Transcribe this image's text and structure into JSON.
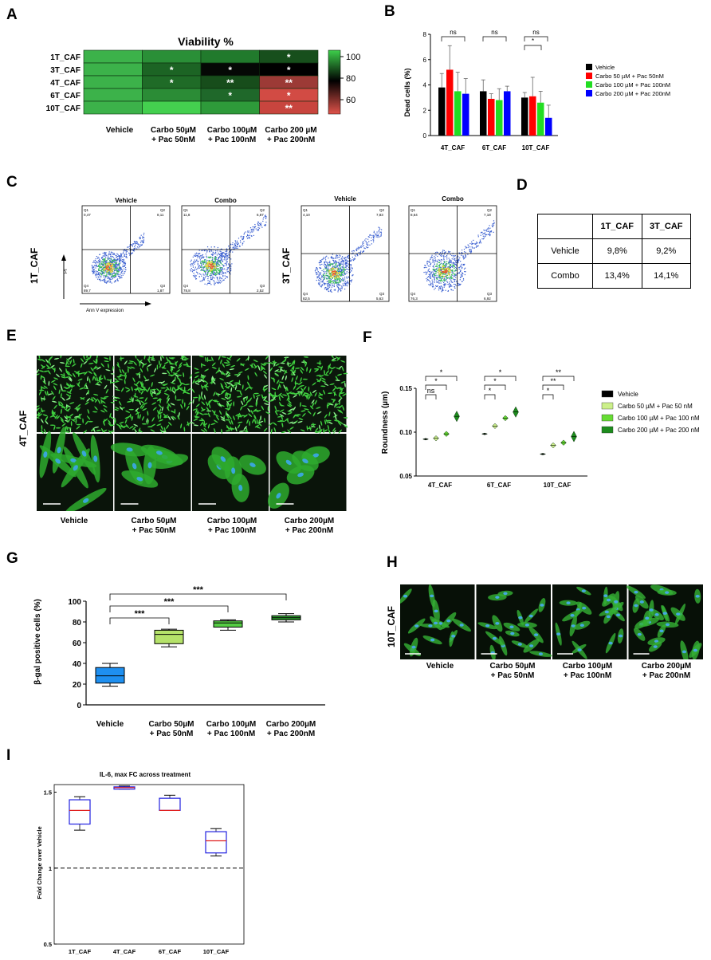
{
  "panels": {
    "a": "A",
    "b": "B",
    "c": "C",
    "d": "D",
    "e": "E",
    "f": "F",
    "g": "G",
    "h": "H",
    "i": "I"
  },
  "panel_a": {
    "title": "Viability %",
    "rows": [
      "1T_CAF",
      "3T_CAF",
      "4T_CAF",
      "6T_CAF",
      "10T_CAF"
    ],
    "columns": [
      "Vehicle",
      "Carbo 50µM + Pac 50nM",
      "Carbo 100µM + Pac 100nM",
      "Carbo 200 µM + Pac 200nM"
    ],
    "column_lines": [
      [
        "Vehicle",
        ""
      ],
      [
        "Carbo 50µM",
        "+ Pac 50nM"
      ],
      [
        "Carbo 100µM",
        "+ Pac 100nM"
      ],
      [
        "Carbo 200 µM",
        "+ Pac 200nM"
      ]
    ],
    "cells": [
      [
        {
          "color": "#3cb24a",
          "mark": ""
        },
        {
          "color": "#2a8f37",
          "mark": ""
        },
        {
          "color": "#217a2c",
          "mark": ""
        },
        {
          "color": "#174f1c",
          "mark": "*"
        }
      ],
      [
        {
          "color": "#3cb24a",
          "mark": ""
        },
        {
          "color": "#1c6424",
          "mark": "*"
        },
        {
          "color": "#050805",
          "mark": "*"
        },
        {
          "color": "#000000",
          "mark": "*"
        }
      ],
      [
        {
          "color": "#3cb24a",
          "mark": ""
        },
        {
          "color": "#1f6b27",
          "mark": "*"
        },
        {
          "color": "#174d1b",
          "mark": "**"
        },
        {
          "color": "#9c3a36",
          "mark": "**"
        }
      ],
      [
        {
          "color": "#3cb24a",
          "mark": ""
        },
        {
          "color": "#2b8c36",
          "mark": ""
        },
        {
          "color": "#1f682a",
          "mark": "*"
        },
        {
          "color": "#d24b44",
          "mark": "*"
        }
      ],
      [
        {
          "color": "#3cb24a",
          "mark": ""
        },
        {
          "color": "#44d04f",
          "mark": ""
        },
        {
          "color": "#2e9a3a",
          "mark": ""
        },
        {
          "color": "#c8453e",
          "mark": "**"
        }
      ]
    ],
    "colorbar_ticks": [
      "100",
      "80",
      "60"
    ]
  },
  "panel_b": {
    "ylabel": "Dead cells (%)",
    "yticks": [
      "0",
      "2",
      "4",
      "6",
      "8"
    ],
    "groups": [
      "4T_CAF",
      "6T_CAF",
      "10T_CAF"
    ],
    "legend": [
      "Vehicle",
      "Carbo 50 µM + Pac 50nM",
      "Carbo 100 µM + Pac 100nM",
      "Carbo 200 µM + Pac 200nM"
    ],
    "sig": [
      "ns",
      "ns",
      "*",
      "ns"
    ]
  },
  "panel_c": {
    "ylabel_rows": [
      "1T_CAF",
      "3T_CAF"
    ],
    "plot_titles": [
      "Vehicle",
      "Combo",
      "Vehicle",
      "Combo"
    ],
    "quadrants": [
      {
        "q1": "Q1",
        "q1v": "0,47",
        "q2": "Q2",
        "q2v": "8,11",
        "q3": "Q3",
        "q3v": "1,87",
        "q4": "Q4",
        "q4v": "89,7"
      },
      {
        "q1": "Q1",
        "q1v": "11,8",
        "q2": "Q2",
        "q2v": "6,87",
        "q3": "Q3",
        "q3v": "2,52",
        "q4": "Q4",
        "q4v": "78,8"
      },
      {
        "q1": "Q1",
        "q1v": "4,10",
        "q2": "Q2",
        "q2v": "7,83",
        "q3": "Q3",
        "q3v": "5,63",
        "q4": "Q4",
        "q4v": "82,5"
      },
      {
        "q1": "Q1",
        "q1v": "8,64",
        "q2": "Q2",
        "q2v": "7,18",
        "q3": "Q3",
        "q3v": "6,92",
        "q4": "Q4",
        "q4v": "76,3"
      }
    ],
    "pi_label": "PI",
    "annv_label": "Ann V expression"
  },
  "panel_d": {
    "headers": [
      "",
      "1T_CAF",
      "3T_CAF"
    ],
    "rows": [
      [
        "Vehicle",
        "9,8%",
        "9,2%"
      ],
      [
        "Combo",
        "13,4%",
        "14,1%"
      ]
    ]
  },
  "panel_e": {
    "row_label": "4T_CAF",
    "captions": [
      [
        "Vehicle",
        ""
      ],
      [
        "Carbo 50µM",
        "+ Pac 50nM"
      ],
      [
        "Carbo 100µM",
        "+ Pac 100nM"
      ],
      [
        "Carbo 200µM",
        "+ Pac 200nM"
      ]
    ]
  },
  "panel_f": {
    "ylabel": "Roundness (µm)",
    "yticks": [
      "0.05",
      "0.10",
      "0.15"
    ],
    "groups": [
      "4T_CAF",
      "6T_CAF",
      "10T_CAF"
    ],
    "legend": [
      "Vehicle",
      "Carbo 50 µM + Pac 50 nM",
      "Carbo 100 µM + Pac 100 nM",
      "Carbo 200 µM + Pac 200 nM"
    ],
    "sig": {
      "g1": [
        "*",
        "*",
        "ns"
      ],
      "g2": [
        "*",
        "*",
        "*"
      ],
      "g3": [
        "**",
        "**",
        "*"
      ]
    }
  },
  "panel_g": {
    "ylabel": "β-gal positive cells (%)",
    "yticks": [
      "0",
      "20",
      "40",
      "60",
      "80",
      "100"
    ],
    "categories": [
      [
        "Vehicle",
        ""
      ],
      [
        "Carbo 50µM",
        "+ Pac 50nM"
      ],
      [
        "Carbo 100µM",
        "+ Pac 100nM"
      ],
      [
        "Carbo 200µM",
        "+ Pac 200nM"
      ]
    ],
    "sig": [
      "***",
      "***",
      "***"
    ]
  },
  "panel_h": {
    "row_label": "10T_CAF",
    "captions": [
      [
        "Vehicle",
        ""
      ],
      [
        "Carbo 50µM",
        "+ Pac 50nM"
      ],
      [
        "Carbo 100µM",
        "+ Pac 100nM"
      ],
      [
        "Carbo 200µM",
        "+ Pac 200nM"
      ]
    ]
  },
  "panel_i": {
    "title": "IL-6, max FC across treatment",
    "ylabel": "Fold Change over Vehicle",
    "yticks": [
      "0.5",
      "1",
      "1.5"
    ],
    "categories": [
      "1T_CAF",
      "4T_CAF",
      "6T_CAF",
      "10T_CAF"
    ]
  },
  "colors": {
    "vehicle": "#000000",
    "c50": "#ff0000",
    "c100": "#22dd22",
    "c200": "#0000ff",
    "f_c50": "#ccf08a",
    "f_c100": "#66dd33",
    "f_c200": "#1d8c1d",
    "g_vehicle": "#1e8ff0",
    "g_c50": "#b5e26a",
    "g_c100": "#55cc44",
    "g_c200": "#2e9e2e",
    "heat_high": "#3cb24a",
    "heat_mid": "#000000",
    "heat_low": "#dd4f47"
  },
  "chart_data": [
    {
      "type": "heatmap",
      "title": "Viability %",
      "rows": [
        "1T_CAF",
        "3T_CAF",
        "4T_CAF",
        "6T_CAF",
        "10T_CAF"
      ],
      "columns": [
        "Vehicle",
        "Carbo 50µM + Pac 50nM",
        "Carbo 100µM + Pac 100nM",
        "Carbo 200 µM + Pac 200nM"
      ],
      "values": [
        [
          100,
          92,
          89,
          84
        ],
        [
          100,
          85,
          79,
          78
        ],
        [
          100,
          86,
          82,
          67
        ],
        [
          100,
          92,
          86,
          58
        ],
        [
          100,
          104,
          95,
          60
        ]
      ],
      "colorbar_range": [
        55,
        102
      ]
    },
    {
      "type": "bar",
      "ylabel": "Dead cells (%)",
      "ylim": [
        0,
        8
      ],
      "categories": [
        "4T_CAF",
        "6T_CAF",
        "10T_CAF"
      ],
      "series": [
        {
          "name": "Vehicle",
          "values": [
            3.8,
            3.5,
            3.0
          ],
          "errors": [
            1.1,
            0.9,
            0.4
          ]
        },
        {
          "name": "Carbo 50 µM + Pac 50nM",
          "values": [
            5.2,
            2.9,
            3.1
          ],
          "errors": [
            1.9,
            0.4,
            1.5
          ]
        },
        {
          "name": "Carbo 100 µM + Pac 100nM",
          "values": [
            3.5,
            2.8,
            2.6
          ],
          "errors": [
            1.5,
            0.9,
            0.9
          ]
        },
        {
          "name": "Carbo 200 µM + Pac 200nM",
          "values": [
            3.3,
            3.5,
            1.4
          ],
          "errors": [
            1.2,
            0.4,
            1.0
          ]
        }
      ]
    },
    {
      "type": "scatter",
      "ylabel": "Roundness (µm)",
      "ylim": [
        0.05,
        0.15
      ],
      "categories": [
        "4T_CAF",
        "6T_CAF",
        "10T_CAF"
      ],
      "series": [
        {
          "name": "Vehicle",
          "values": [
            0.092,
            0.098,
            0.075
          ]
        },
        {
          "name": "Carbo 50 µM + Pac 50 nM",
          "values": [
            0.093,
            0.107,
            0.085
          ]
        },
        {
          "name": "Carbo 100 µM + Pac 100 nM",
          "values": [
            0.098,
            0.116,
            0.088
          ]
        },
        {
          "name": "Carbo 200 µM + Pac 200 nM",
          "values": [
            0.118,
            0.123,
            0.095
          ]
        }
      ]
    },
    {
      "type": "bar",
      "ylabel": "β-gal positive cells (%)",
      "ylim": [
        0,
        100
      ],
      "categories": [
        "Vehicle",
        "Carbo 50µM + Pac 50nM",
        "Carbo 100µM + Pac 100nM",
        "Carbo 200µM + Pac 200nM"
      ],
      "box": [
        {
          "min": 18,
          "q1": 21,
          "median": 28,
          "q3": 36,
          "max": 40
        },
        {
          "min": 56,
          "q1": 59,
          "median": 68,
          "q3": 72,
          "max": 73
        },
        {
          "min": 72,
          "q1": 75,
          "median": 79,
          "q3": 81,
          "max": 82
        },
        {
          "min": 80,
          "q1": 82,
          "median": 84,
          "q3": 86,
          "max": 88
        }
      ]
    },
    {
      "type": "bar",
      "title": "IL-6, max FC across treatment",
      "ylabel": "Fold Change over Vehicle",
      "ylim": [
        0.5,
        1.55
      ],
      "categories": [
        "1T_CAF",
        "4T_CAF",
        "6T_CAF",
        "10T_CAF"
      ],
      "box": [
        {
          "min": 1.25,
          "q1": 1.29,
          "median": 1.38,
          "q3": 1.45,
          "max": 1.47
        },
        {
          "min": 1.52,
          "q1": 1.52,
          "median": 1.53,
          "q3": 1.535,
          "max": 1.54
        },
        {
          "min": 1.38,
          "q1": 1.38,
          "median": 1.38,
          "q3": 1.46,
          "max": 1.48
        },
        {
          "min": 1.08,
          "q1": 1.1,
          "median": 1.18,
          "q3": 1.24,
          "max": 1.26
        }
      ],
      "reference_line": 1
    }
  ]
}
